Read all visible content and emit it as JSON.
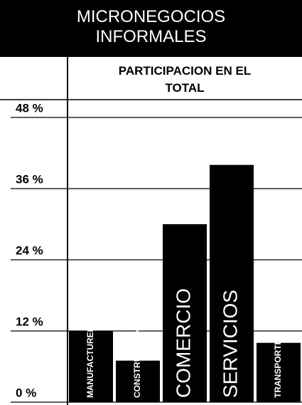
{
  "chart_data": {
    "type": "bar",
    "title": "MICRONEGOCIOS INFORMALES",
    "subtitle": "PARTICIPACION EN EL TOTAL",
    "categories": [
      "MANUFACTURERAS",
      "CONSTRUCCION",
      "COMERCIO",
      "SERVICIOS",
      "TRANSPORTE"
    ],
    "values": [
      12,
      7,
      30,
      40,
      10
    ],
    "color": "#000000",
    "ylim": [
      0,
      48
    ],
    "yticks": [
      {
        "value": 0,
        "label": "0 %"
      },
      {
        "value": 12,
        "label": "12 %"
      },
      {
        "value": 24,
        "label": "24 %"
      },
      {
        "value": 36,
        "label": "36 %"
      },
      {
        "value": 48,
        "label": "48 %"
      }
    ],
    "grid": true
  }
}
